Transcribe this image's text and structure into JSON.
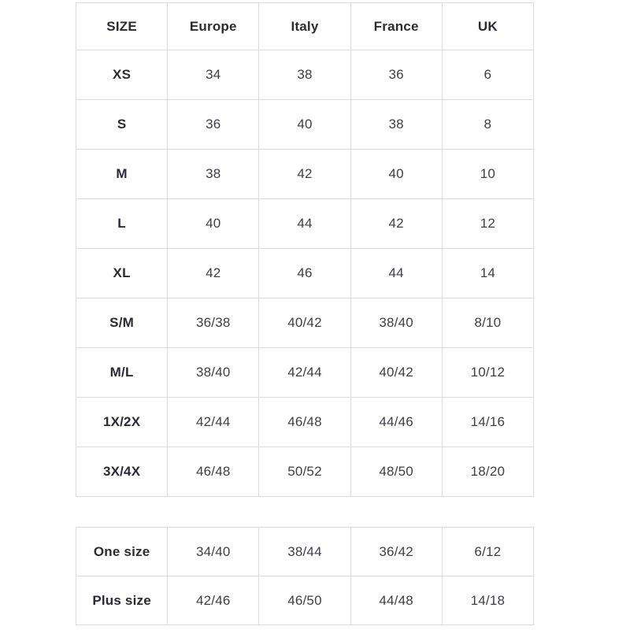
{
  "colors": {
    "background": "#ffffff",
    "border": "#dcdcdc",
    "header_text": "#2b2b35",
    "cell_text": "#3e3e48"
  },
  "main_table": {
    "headers": [
      "SIZE",
      "Europe",
      "Italy",
      "France",
      "UK"
    ],
    "rows": [
      {
        "size": "XS",
        "values": [
          "34",
          "38",
          "36",
          "6"
        ]
      },
      {
        "size": "S",
        "values": [
          "36",
          "40",
          "38",
          "8"
        ]
      },
      {
        "size": "M",
        "values": [
          "38",
          "42",
          "40",
          "10"
        ]
      },
      {
        "size": "L",
        "values": [
          "40",
          "44",
          "42",
          "12"
        ]
      },
      {
        "size": "XL",
        "values": [
          "42",
          "46",
          "44",
          "14"
        ]
      },
      {
        "size": "S/M",
        "values": [
          "36/38",
          "40/42",
          "38/40",
          "8/10"
        ]
      },
      {
        "size": "M/L",
        "values": [
          "38/40",
          "42/44",
          "40/42",
          "10/12"
        ]
      },
      {
        "size": "1X/2X",
        "values": [
          "42/44",
          "46/48",
          "44/46",
          "14/16"
        ]
      },
      {
        "size": "3X/4X",
        "values": [
          "46/48",
          "50/52",
          "48/50",
          "18/20"
        ]
      }
    ]
  },
  "extra_table": {
    "rows": [
      {
        "size": "One size",
        "values": [
          "34/40",
          "38/44",
          "36/42",
          "6/12"
        ]
      },
      {
        "size": "Plus size",
        "values": [
          "42/46",
          "46/50",
          "44/48",
          "14/18"
        ]
      }
    ]
  }
}
